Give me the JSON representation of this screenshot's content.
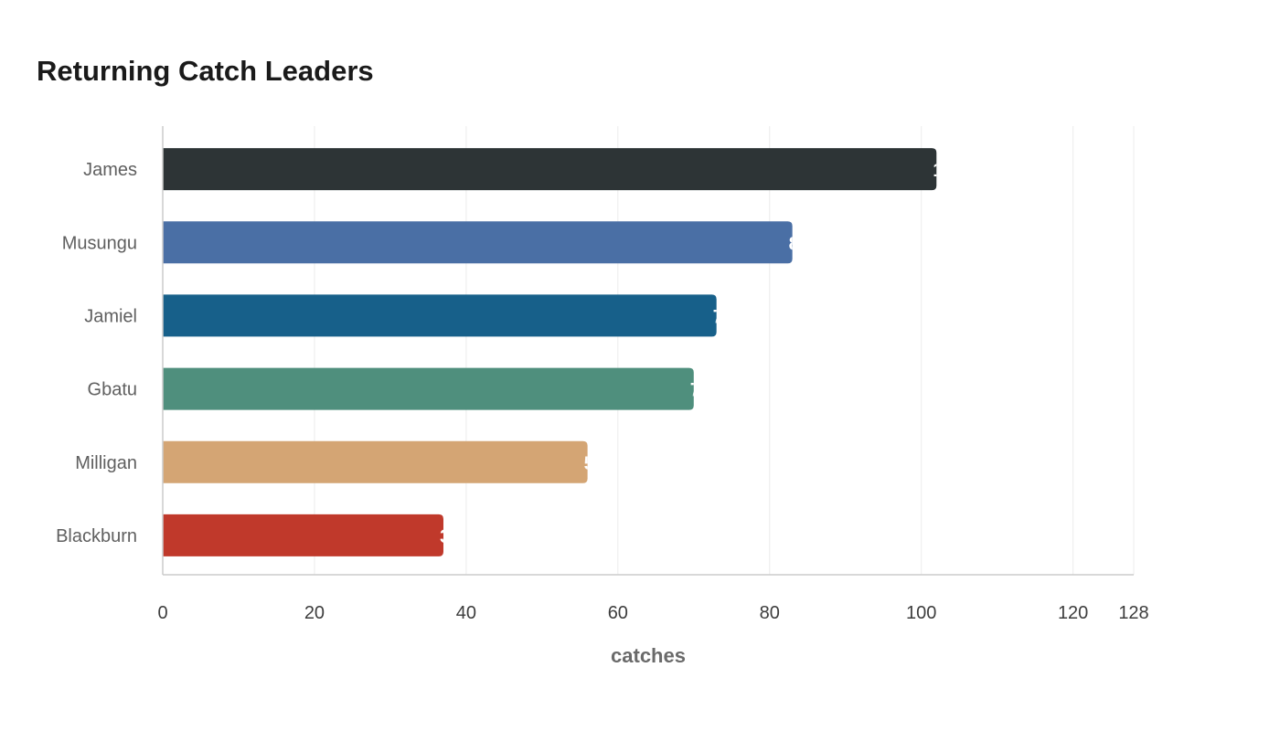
{
  "chart_data": {
    "type": "bar",
    "orientation": "horizontal",
    "title": "Returning Catch Leaders",
    "xlabel": "catches",
    "ylabel": "",
    "categories": [
      "James",
      "Musungu",
      "Jamiel",
      "Gbatu",
      "Milligan",
      "Blackburn"
    ],
    "values": [
      102,
      83,
      73,
      70,
      56,
      37
    ],
    "colors": [
      "#2d3436",
      "#4a6fa5",
      "#17608a",
      "#4f8f7d",
      "#d4a574",
      "#c0392b"
    ],
    "xlim": [
      0,
      128
    ],
    "xticks": [
      0,
      20,
      40,
      60,
      80,
      100,
      120,
      128
    ],
    "grid": true,
    "legend": "none"
  }
}
